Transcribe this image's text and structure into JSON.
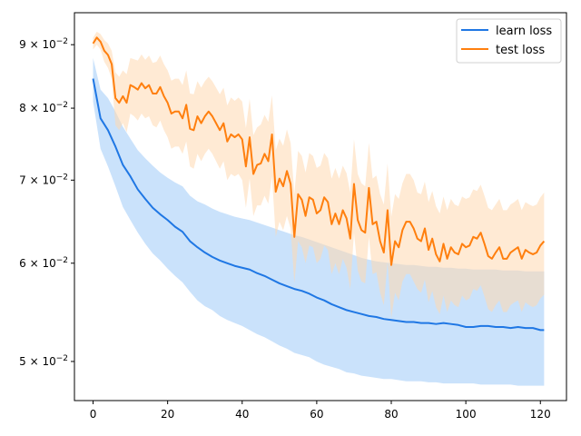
{
  "chart_data": {
    "type": "line",
    "yscale": "log",
    "xlim": [
      -5,
      127
    ],
    "ylim": [
      0.0465,
      0.0955
    ],
    "xticks": [
      0,
      20,
      40,
      60,
      80,
      100,
      120
    ],
    "xtick_labels": [
      "0",
      "20",
      "40",
      "60",
      "80",
      "100",
      "120"
    ],
    "yticks": [
      0.05,
      0.06,
      0.07,
      0.08,
      0.09
    ],
    "ytick_labels": [
      {
        "mantissa": "5",
        "base": "10",
        "exp": "−2"
      },
      {
        "mantissa": "6",
        "base": "10",
        "exp": "−2"
      },
      {
        "mantissa": "7",
        "base": "10",
        "exp": "−2"
      },
      {
        "mantissa": "8",
        "base": "10",
        "exp": "−2"
      },
      {
        "mantissa": "9",
        "base": "10",
        "exp": "−2"
      }
    ],
    "grid": false,
    "legend_position": "top-right",
    "series": [
      {
        "name": "learn loss",
        "color": "#1f77e4",
        "band_color": "#9fcbf7",
        "x": [
          0,
          2,
          4,
          6,
          8,
          10,
          12,
          14,
          16,
          18,
          20,
          22,
          24,
          26,
          28,
          30,
          32,
          34,
          36,
          38,
          40,
          42,
          44,
          46,
          48,
          50,
          52,
          54,
          56,
          58,
          60,
          62,
          64,
          66,
          68,
          70,
          72,
          74,
          76,
          78,
          80,
          82,
          84,
          86,
          88,
          90,
          92,
          94,
          96,
          98,
          100,
          102,
          104,
          106,
          108,
          110,
          112,
          114,
          116,
          118,
          120,
          121
        ],
        "y": [
          0.0845,
          0.0785,
          0.0768,
          0.0745,
          0.072,
          0.0705,
          0.0688,
          0.0676,
          0.0665,
          0.0657,
          0.065,
          0.0642,
          0.0636,
          0.0625,
          0.0618,
          0.0612,
          0.0607,
          0.0603,
          0.06,
          0.0597,
          0.0595,
          0.0593,
          0.0589,
          0.0586,
          0.0582,
          0.0578,
          0.0575,
          0.0572,
          0.057,
          0.0567,
          0.0563,
          0.056,
          0.0556,
          0.0553,
          0.055,
          0.0548,
          0.0546,
          0.0544,
          0.0543,
          0.0541,
          0.054,
          0.0539,
          0.0538,
          0.0538,
          0.0537,
          0.0537,
          0.0536,
          0.0537,
          0.0536,
          0.0535,
          0.0533,
          0.0533,
          0.0534,
          0.0534,
          0.0533,
          0.0533,
          0.0532,
          0.0533,
          0.0532,
          0.0532,
          0.053,
          0.053
        ],
        "y_lower": [
          0.081,
          0.0742,
          0.0718,
          0.0692,
          0.0666,
          0.065,
          0.0635,
          0.0622,
          0.0611,
          0.0603,
          0.0594,
          0.0586,
          0.0579,
          0.0569,
          0.056,
          0.0554,
          0.055,
          0.0544,
          0.054,
          0.0537,
          0.0534,
          0.053,
          0.0526,
          0.0523,
          0.0519,
          0.0515,
          0.0512,
          0.0508,
          0.0506,
          0.0504,
          0.05,
          0.0497,
          0.0495,
          0.0493,
          0.049,
          0.0489,
          0.0487,
          0.0486,
          0.0485,
          0.0484,
          0.0484,
          0.0483,
          0.0482,
          0.0482,
          0.0482,
          0.0481,
          0.0481,
          0.048,
          0.048,
          0.048,
          0.048,
          0.048,
          0.0479,
          0.0479,
          0.0479,
          0.0479,
          0.0479,
          0.0478,
          0.0478,
          0.0478,
          0.0478,
          0.0478
        ],
        "y_upper": [
          0.0878,
          0.0828,
          0.0815,
          0.0795,
          0.0773,
          0.0756,
          0.074,
          0.0729,
          0.0719,
          0.071,
          0.0703,
          0.0697,
          0.0692,
          0.068,
          0.0673,
          0.0669,
          0.0664,
          0.066,
          0.0657,
          0.0654,
          0.0652,
          0.065,
          0.0647,
          0.0644,
          0.0641,
          0.0638,
          0.0635,
          0.0632,
          0.063,
          0.0627,
          0.0624,
          0.0621,
          0.0618,
          0.0615,
          0.0612,
          0.0609,
          0.0606,
          0.0604,
          0.0602,
          0.0601,
          0.06,
          0.0599,
          0.0598,
          0.0598,
          0.0597,
          0.0596,
          0.0596,
          0.0595,
          0.0595,
          0.0594,
          0.0594,
          0.0593,
          0.0593,
          0.0593,
          0.0593,
          0.0592,
          0.0592,
          0.0592,
          0.0591,
          0.0591,
          0.0591,
          0.0591
        ]
      },
      {
        "name": "test loss",
        "color": "#ff7f0e",
        "band_color": "#ffd9b0",
        "x": [
          0,
          1,
          2,
          3,
          4,
          5,
          6,
          7,
          8,
          9,
          10,
          11,
          12,
          13,
          14,
          15,
          16,
          17,
          18,
          19,
          20,
          21,
          22,
          23,
          24,
          25,
          26,
          27,
          28,
          29,
          30,
          31,
          32,
          33,
          34,
          35,
          36,
          37,
          38,
          39,
          40,
          41,
          42,
          43,
          44,
          45,
          46,
          47,
          48,
          49,
          50,
          51,
          52,
          53,
          54,
          55,
          56,
          57,
          58,
          59,
          60,
          61,
          62,
          63,
          64,
          65,
          66,
          67,
          68,
          69,
          70,
          71,
          72,
          73,
          74,
          75,
          76,
          77,
          78,
          79,
          80,
          81,
          82,
          83,
          84,
          85,
          86,
          87,
          88,
          89,
          90,
          91,
          92,
          93,
          94,
          95,
          96,
          97,
          98,
          99,
          100,
          101,
          102,
          103,
          104,
          105,
          106,
          107,
          108,
          109,
          110,
          111,
          112,
          113,
          114,
          115,
          116,
          117,
          118,
          119,
          120,
          121
        ],
        "y": [
          0.0902,
          0.0912,
          0.0905,
          0.089,
          0.0883,
          0.0868,
          0.0815,
          0.0808,
          0.0818,
          0.0808,
          0.0835,
          0.0832,
          0.0828,
          0.0838,
          0.083,
          0.0835,
          0.0822,
          0.0822,
          0.0832,
          0.0818,
          0.0808,
          0.0792,
          0.0795,
          0.0795,
          0.0785,
          0.0805,
          0.077,
          0.0768,
          0.0788,
          0.0778,
          0.0788,
          0.0795,
          0.0788,
          0.0778,
          0.0768,
          0.0778,
          0.0752,
          0.0762,
          0.0758,
          0.0762,
          0.0755,
          0.0718,
          0.0758,
          0.0708,
          0.072,
          0.0722,
          0.0735,
          0.0725,
          0.0762,
          0.0685,
          0.0702,
          0.0692,
          0.0712,
          0.0695,
          0.063,
          0.0682,
          0.0675,
          0.0655,
          0.0678,
          0.0675,
          0.0658,
          0.0662,
          0.0678,
          0.0672,
          0.0645,
          0.0658,
          0.0645,
          0.0662,
          0.0652,
          0.0628,
          0.0695,
          0.065,
          0.0638,
          0.0635,
          0.069,
          0.0645,
          0.0648,
          0.0625,
          0.0612,
          0.0662,
          0.0598,
          0.0625,
          0.0618,
          0.0638,
          0.0648,
          0.0648,
          0.064,
          0.0628,
          0.0625,
          0.064,
          0.0615,
          0.0628,
          0.061,
          0.0602,
          0.0622,
          0.0605,
          0.0618,
          0.0612,
          0.061,
          0.0622,
          0.0618,
          0.062,
          0.063,
          0.0628,
          0.0635,
          0.0622,
          0.0608,
          0.0605,
          0.0612,
          0.0618,
          0.0605,
          0.0605,
          0.0612,
          0.0615,
          0.0618,
          0.0605,
          0.0615,
          0.0612,
          0.061,
          0.0612,
          0.062,
          0.0625
        ],
        "y_lower": [
          0.0892,
          0.09,
          0.0892,
          0.0872,
          0.0862,
          0.0845,
          0.0775,
          0.0768,
          0.0778,
          0.0765,
          0.0792,
          0.0788,
          0.0782,
          0.0792,
          0.0785,
          0.0788,
          0.0775,
          0.0772,
          0.0782,
          0.0768,
          0.0758,
          0.0742,
          0.0745,
          0.0745,
          0.0735,
          0.0752,
          0.0718,
          0.0715,
          0.0735,
          0.0725,
          0.0735,
          0.0742,
          0.0735,
          0.0725,
          0.0715,
          0.0725,
          0.07,
          0.0708,
          0.0705,
          0.0708,
          0.07,
          0.0665,
          0.0702,
          0.0655,
          0.0668,
          0.0668,
          0.068,
          0.067,
          0.0705,
          0.063,
          0.0648,
          0.0638,
          0.0655,
          0.064,
          0.0578,
          0.0625,
          0.0618,
          0.06,
          0.062,
          0.0618,
          0.06,
          0.0605,
          0.062,
          0.0615,
          0.0588,
          0.06,
          0.0588,
          0.0605,
          0.0595,
          0.0572,
          0.0635,
          0.0592,
          0.058,
          0.0578,
          0.063,
          0.0588,
          0.059,
          0.0568,
          0.0555,
          0.0602,
          0.0542,
          0.0568,
          0.056,
          0.058,
          0.0588,
          0.0588,
          0.058,
          0.0572,
          0.0568,
          0.0582,
          0.0558,
          0.057,
          0.0553,
          0.0546,
          0.0565,
          0.0548,
          0.056,
          0.0555,
          0.0553,
          0.0565,
          0.056,
          0.0562,
          0.0572,
          0.057,
          0.0576,
          0.0564,
          0.0551,
          0.0548,
          0.0555,
          0.056,
          0.0548,
          0.0548,
          0.0555,
          0.0558,
          0.056,
          0.0548,
          0.0558,
          0.0555,
          0.0553,
          0.0555,
          0.0562,
          0.0566
        ],
        "y_upper": [
          0.0912,
          0.0922,
          0.0918,
          0.0908,
          0.0902,
          0.089,
          0.0855,
          0.0848,
          0.0858,
          0.0852,
          0.0878,
          0.0876,
          0.0874,
          0.0884,
          0.0875,
          0.0882,
          0.087,
          0.0872,
          0.0882,
          0.0868,
          0.0858,
          0.0842,
          0.0845,
          0.0845,
          0.0835,
          0.0858,
          0.0822,
          0.0821,
          0.0841,
          0.0831,
          0.0841,
          0.0848,
          0.0841,
          0.0831,
          0.0821,
          0.0831,
          0.0804,
          0.0816,
          0.0811,
          0.0816,
          0.081,
          0.0771,
          0.0814,
          0.0761,
          0.0772,
          0.0776,
          0.079,
          0.078,
          0.0819,
          0.074,
          0.0756,
          0.0746,
          0.0769,
          0.075,
          0.0682,
          0.0739,
          0.0732,
          0.071,
          0.0736,
          0.0732,
          0.0716,
          0.0719,
          0.0736,
          0.0729,
          0.0702,
          0.0716,
          0.0702,
          0.0719,
          0.0709,
          0.0684,
          0.0755,
          0.0708,
          0.0696,
          0.0692,
          0.075,
          0.0702,
          0.0706,
          0.0682,
          0.0669,
          0.0722,
          0.0654,
          0.0682,
          0.0676,
          0.0696,
          0.0708,
          0.0708,
          0.07,
          0.0684,
          0.0682,
          0.0698,
          0.0672,
          0.0686,
          0.0667,
          0.0658,
          0.0679,
          0.0662,
          0.0676,
          0.0669,
          0.0667,
          0.0679,
          0.0676,
          0.0678,
          0.0688,
          0.0686,
          0.0694,
          0.068,
          0.0665,
          0.0662,
          0.0669,
          0.0676,
          0.0662,
          0.0662,
          0.0669,
          0.0672,
          0.0676,
          0.0662,
          0.0672,
          0.0669,
          0.0667,
          0.0669,
          0.0678,
          0.0684
        ]
      }
    ]
  }
}
